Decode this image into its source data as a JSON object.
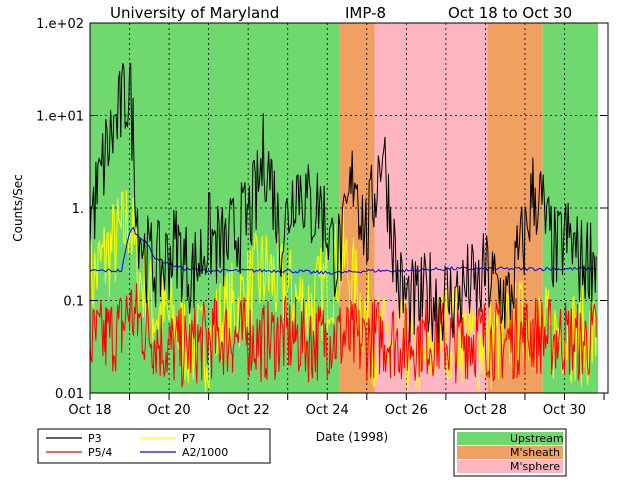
{
  "chart_data": {
    "type": "line",
    "title": {
      "institution": "University of Maryland",
      "spacecraft": "IMP-8",
      "period": "Oct 18 to Oct 30"
    },
    "xlabel": "Date (1998)",
    "ylabel": "Counts/Sec",
    "y_scale": "log",
    "ylim": [
      0.01,
      100
    ],
    "xlim": [
      18.0,
      31.1
    ],
    "y_ticks": [
      {
        "value": 0.01,
        "label": "0.01"
      },
      {
        "value": 0.1,
        "label": "0.1"
      },
      {
        "value": 1,
        "label": "1."
      },
      {
        "value": 10,
        "label": "1.e+01"
      },
      {
        "value": 100,
        "label": "1.e+02"
      }
    ],
    "x_ticks": [
      {
        "value": 18,
        "label": "Oct 18"
      },
      {
        "value": 20,
        "label": "Oct 20"
      },
      {
        "value": 22,
        "label": "Oct 22"
      },
      {
        "value": 24,
        "label": "Oct 24"
      },
      {
        "value": 26,
        "label": "Oct 26"
      },
      {
        "value": 28,
        "label": "Oct 28"
      },
      {
        "value": 30,
        "label": "Oct 30"
      }
    ],
    "regions": [
      {
        "start": 18.0,
        "end": 24.3,
        "type": "Upstream",
        "color": "#6fd96f"
      },
      {
        "start": 24.3,
        "end": 25.2,
        "type": "M'sheath",
        "color": "#f0a060"
      },
      {
        "start": 25.2,
        "end": 28.05,
        "type": "M'sphere",
        "color": "#ffb6c1"
      },
      {
        "start": 28.05,
        "end": 29.45,
        "type": "M'sheath",
        "color": "#f0a060"
      },
      {
        "start": 29.45,
        "end": 30.85,
        "type": "Upstream",
        "color": "#6fd96f"
      }
    ],
    "region_legend": [
      {
        "label": "Upstream",
        "color": "#6fd96f"
      },
      {
        "label": "M'sheath",
        "color": "#f0a060"
      },
      {
        "label": "M'sphere",
        "color": "#ffb6c1"
      }
    ],
    "series": [
      {
        "name": "P3",
        "color": "#000000",
        "x": [
          18.0,
          18.2,
          18.4,
          18.6,
          18.8,
          19.0,
          19.1,
          19.2,
          19.4,
          19.6,
          19.8,
          20.0,
          20.2,
          20.4,
          20.6,
          20.8,
          21.0,
          21.2,
          21.4,
          21.6,
          21.8,
          22.0,
          22.2,
          22.4,
          22.6,
          22.8,
          23.0,
          23.2,
          23.4,
          23.6,
          23.8,
          24.0,
          24.2,
          24.4,
          24.6,
          24.7,
          24.8,
          25.0,
          25.2,
          25.4,
          25.6,
          25.8,
          26.0,
          26.2,
          26.4,
          26.6,
          26.8,
          27.0,
          27.2,
          27.4,
          27.6,
          27.8,
          28.0,
          28.2,
          28.4,
          28.6,
          28.8,
          29.0,
          29.2,
          29.4,
          29.6,
          29.8,
          30.0,
          30.2,
          30.4,
          30.6,
          30.8
        ],
        "values": [
          0.8,
          1.5,
          4,
          7,
          12,
          20,
          6,
          0.8,
          0.3,
          0.25,
          0.22,
          0.3,
          0.4,
          0.25,
          0.2,
          0.3,
          0.5,
          0.4,
          0.35,
          0.5,
          0.6,
          0.8,
          1.2,
          4,
          2,
          0.5,
          0.8,
          2,
          1.5,
          0.9,
          1.2,
          0.6,
          0.3,
          0.4,
          1.5,
          3,
          1.2,
          0.5,
          1.5,
          5,
          0.8,
          0.15,
          0.1,
          0.09,
          0.1,
          0.12,
          0.1,
          0.11,
          0.1,
          0.12,
          0.15,
          0.12,
          0.2,
          0.15,
          0.12,
          0.1,
          0.25,
          0.5,
          1.5,
          1.2,
          0.5,
          0.3,
          0.5,
          0.4,
          0.25,
          0.3,
          0.3
        ]
      },
      {
        "name": "P7",
        "color": "#ffff00",
        "x": [
          18.0,
          18.4,
          18.8,
          19.0,
          19.2,
          19.6,
          20.0,
          20.4,
          20.8,
          21.2,
          21.6,
          22.0,
          22.4,
          22.8,
          23.2,
          23.6,
          24.0,
          24.4,
          24.8,
          25.2,
          25.6,
          26.0,
          26.4,
          26.8,
          27.2,
          27.6,
          28.0,
          28.4,
          28.8,
          29.2,
          29.6,
          30.0,
          30.4,
          30.8
        ],
        "values": [
          0.15,
          0.3,
          0.5,
          0.8,
          0.2,
          0.08,
          0.06,
          0.04,
          0.03,
          0.05,
          0.08,
          0.12,
          0.2,
          0.15,
          0.1,
          0.08,
          0.15,
          0.3,
          0.1,
          0.04,
          0.03,
          0.03,
          0.02,
          0.04,
          0.05,
          0.04,
          0.03,
          0.04,
          0.05,
          0.06,
          0.04,
          0.05,
          0.04,
          0.04
        ]
      },
      {
        "name": "P5/4",
        "color": "#ff0000",
        "x": [
          18.0,
          18.4,
          18.8,
          19.0,
          19.2,
          19.6,
          20.0,
          20.4,
          20.8,
          21.2,
          21.6,
          22.0,
          22.4,
          22.8,
          23.2,
          23.6,
          24.0,
          24.4,
          24.8,
          25.2,
          25.6,
          26.0,
          26.4,
          26.8,
          27.2,
          27.6,
          28.0,
          28.4,
          28.8,
          29.2,
          29.6,
          30.0,
          30.4,
          30.8
        ],
        "values": [
          0.035,
          0.04,
          0.05,
          0.08,
          0.06,
          0.04,
          0.03,
          0.03,
          0.035,
          0.04,
          0.04,
          0.04,
          0.035,
          0.04,
          0.04,
          0.035,
          0.04,
          0.04,
          0.035,
          0.04,
          0.04,
          0.035,
          0.04,
          0.04,
          0.035,
          0.04,
          0.04,
          0.035,
          0.04,
          0.045,
          0.04,
          0.04,
          0.035,
          0.04
        ]
      },
      {
        "name": "A2/1000",
        "color": "#0000ff",
        "x": [
          18.0,
          18.8,
          19.0,
          19.1,
          19.2,
          19.4,
          19.6,
          19.8,
          20.0,
          20.4,
          21.0,
          22.0,
          23.0,
          23.7,
          24.0,
          24.4,
          25.0,
          26.0,
          27.0,
          28.0,
          29.0,
          30.0,
          30.8
        ],
        "values": [
          0.21,
          0.21,
          0.55,
          0.6,
          0.5,
          0.45,
          0.3,
          0.27,
          0.25,
          0.22,
          0.21,
          0.21,
          0.21,
          0.2,
          0.2,
          0.2,
          0.21,
          0.21,
          0.22,
          0.22,
          0.22,
          0.22,
          0.22
        ]
      }
    ],
    "legend": [
      {
        "label": "P3",
        "color": "#000000"
      },
      {
        "label": "P7",
        "color": "#ffff00"
      },
      {
        "label": "P5/4",
        "color": "#ff0000"
      },
      {
        "label": "A2/1000",
        "color": "#0000ff"
      }
    ]
  }
}
